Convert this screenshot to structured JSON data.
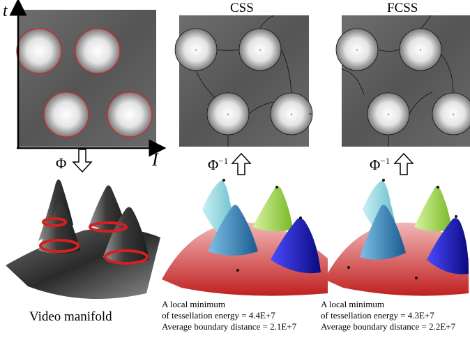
{
  "axes": {
    "y_label": "t",
    "x_label": "I"
  },
  "panels": {
    "css_title": "CSS",
    "fcss_title": "FCSS"
  },
  "mappings": {
    "phi": "Φ",
    "phi_inv_base": "Φ",
    "phi_inv_sup": "−1"
  },
  "manifold_caption": "Video manifold",
  "results": {
    "css": {
      "line1": "A local minimum",
      "line2": "of tessellation energy = 4.4E+7",
      "line3": "Average boundary distance = 2.1E+7"
    },
    "fcss": {
      "line1": "A local minimum",
      "line2": "of tessellation energy = 4.3E+7",
      "line3": "Average boundary distance = 2.2E+7"
    }
  },
  "colors": {
    "circle_outline": "#e02020",
    "site_marker": "#e02020",
    "region_cyan": "#8fd8e0",
    "region_green": "#a8e060",
    "region_blue": "#1a1acc",
    "region_steel": "#2a78b8",
    "region_red": "#d83a3a",
    "manifold_gray": "#3a3a3a"
  }
}
